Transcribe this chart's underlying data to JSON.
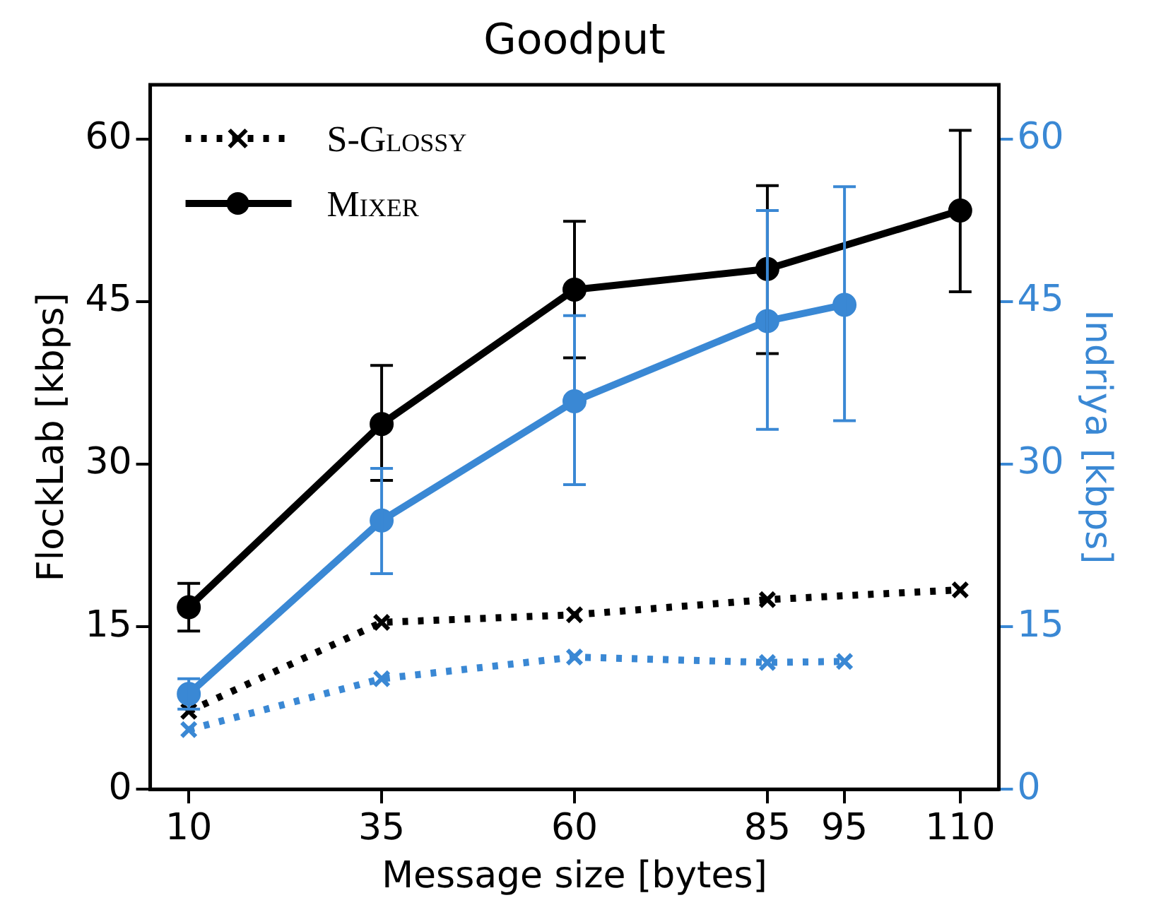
{
  "chart_data": {
    "type": "line",
    "title": "Goodput",
    "xlabel": "Message size [bytes]",
    "ylabel": "FlockLab [kbps]",
    "y2label": "Indriya [kbps]",
    "xlim": [
      5,
      115
    ],
    "xticks": [
      10,
      35,
      60,
      85,
      95,
      110
    ],
    "ylim": [
      0,
      65
    ],
    "yticks": [
      0,
      15,
      30,
      45,
      60
    ],
    "y2lim": [
      0,
      65
    ],
    "y2ticks": [
      0,
      15,
      30,
      45,
      60
    ],
    "grid": false,
    "legend": "top left",
    "series": [
      {
        "name": "S-Glossy",
        "color": "#000000",
        "marker": "cross",
        "line_style": "dotted",
        "x": [
          10,
          35,
          60,
          85,
          110
        ],
        "values": [
          7.2,
          15.4,
          16.1,
          17.5,
          18.4
        ]
      },
      {
        "name": "Mixer",
        "color": "#000000",
        "marker": "circle",
        "line_style": "solid",
        "x": [
          10,
          35,
          60,
          85,
          110
        ],
        "values": [
          16.8,
          33.7,
          46.1,
          48.0,
          53.4
        ],
        "errors": [
          [
            14.6,
            19.0
          ],
          [
            28.5,
            39.1
          ],
          [
            39.8,
            52.4
          ],
          [
            40.2,
            55.7
          ],
          [
            45.9,
            60.8
          ]
        ]
      },
      {
        "color": "#3a88d4",
        "axis": "y2",
        "marker": "cross",
        "line_style": "dotted",
        "x": [
          10,
          35,
          60,
          85,
          95
        ],
        "values": [
          5.5,
          10.2,
          12.2,
          11.7,
          11.8
        ]
      },
      {
        "color": "#3a88d4",
        "axis": "y2",
        "marker": "circle",
        "line_style": "solid",
        "x": [
          10,
          35,
          60,
          85,
          95
        ],
        "values": [
          8.8,
          24.8,
          35.8,
          43.2,
          44.7
        ],
        "errors": [
          [
            7.4,
            10.2
          ],
          [
            19.9,
            29.6
          ],
          [
            28.1,
            43.7
          ],
          [
            33.2,
            53.4
          ],
          [
            34.0,
            55.6
          ]
        ]
      }
    ]
  }
}
